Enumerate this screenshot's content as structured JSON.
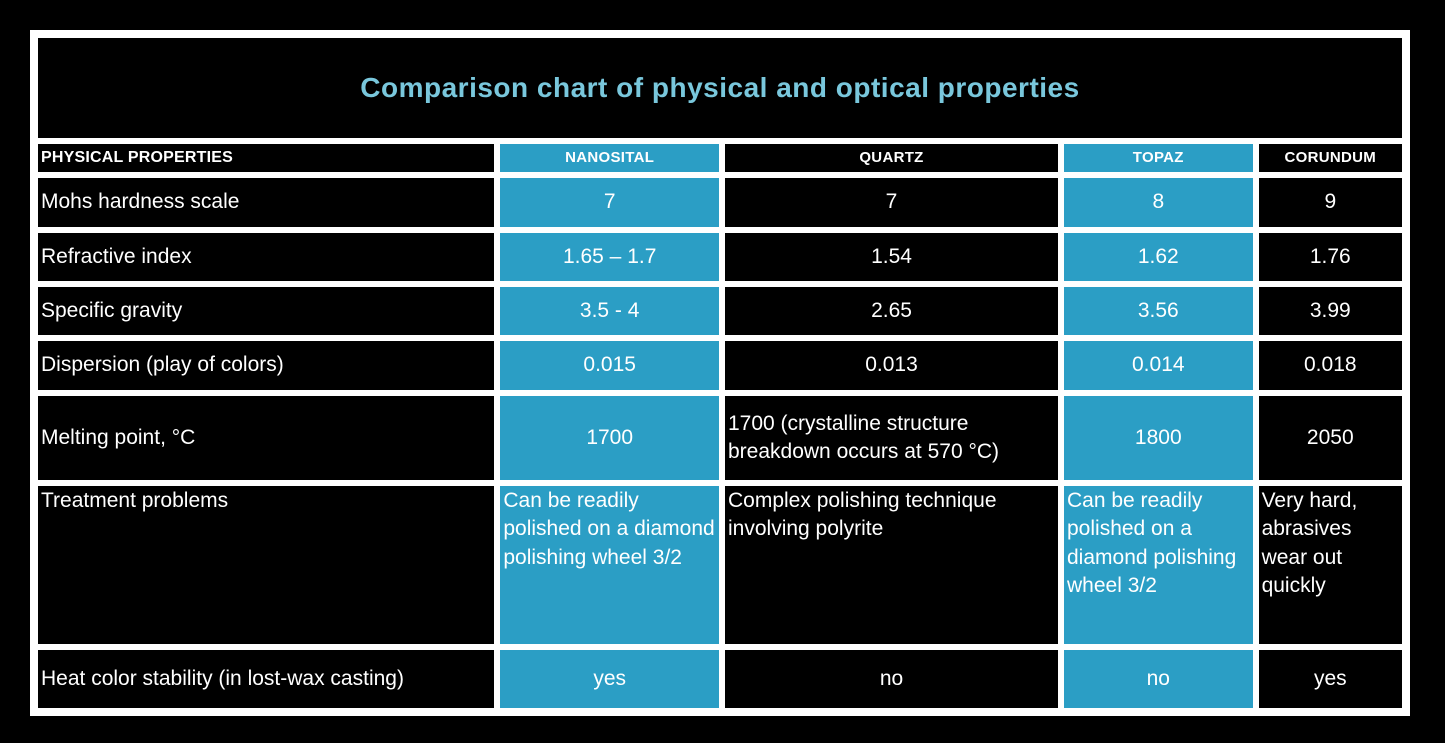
{
  "title": "Comparison chart of physical and optical properties",
  "colors": {
    "background": "#000000",
    "frame": "#ffffff",
    "cell_black": "#000000",
    "cell_highlight_teal": "#2b9ec5",
    "title_text": "#79c7dc",
    "cell_text": "#ffffff"
  },
  "table": {
    "header": [
      "PHYSICAL PROPERTIES",
      "NANOSITAL",
      "QUARTZ",
      "TOPAZ",
      "CORUNDUM"
    ],
    "highlighted_columns": [
      "NANOSITAL",
      "TOPAZ"
    ],
    "rows": [
      {
        "property": "Mohs hardness scale",
        "nanosital": "7",
        "quartz": "7",
        "topaz": "8",
        "corundum": "9"
      },
      {
        "property": "Refractive index",
        "nanosital": "1.65 – 1.7",
        "quartz": "1.54",
        "topaz": "1.62",
        "corundum": "1.76"
      },
      {
        "property": "Specific gravity",
        "nanosital": "3.5 - 4",
        "quartz": "2.65",
        "topaz": "3.56",
        "corundum": "3.99"
      },
      {
        "property": "Dispersion (play of colors)",
        "nanosital": "0.015",
        "quartz": "0.013",
        "topaz": "0.014",
        "corundum": "0.018"
      },
      {
        "property": "Melting point, °C",
        "nanosital": "1700",
        "quartz": "1700 (crystalline structure breakdown occurs at 570 °C)",
        "topaz": "1800",
        "corundum": "2050"
      },
      {
        "property": "Treatment problems",
        "nanosital": "Can be readily polished on a diamond polishing wheel 3/2",
        "quartz": "Complex polishing technique involving polyrite",
        "topaz": "Can be readily polished on a diamond polishing wheel 3/2",
        "corundum": "Very hard, abrasives wear out quickly"
      },
      {
        "property": "Heat color stability (in lost-wax casting)",
        "nanosital": "yes",
        "quartz": "no",
        "topaz": "no",
        "corundum": "yes"
      }
    ]
  },
  "chart_data": {
    "type": "table",
    "title": "Comparison chart of physical and optical properties",
    "columns": [
      "PHYSICAL PROPERTIES",
      "NANOSITAL",
      "QUARTZ",
      "TOPAZ",
      "CORUNDUM"
    ],
    "rows": [
      [
        "Mohs hardness scale",
        "7",
        "7",
        "8",
        "9"
      ],
      [
        "Refractive index",
        "1.65 – 1.7",
        "1.54",
        "1.62",
        "1.76"
      ],
      [
        "Specific gravity",
        "3.5 - 4",
        "2.65",
        "3.56",
        "3.99"
      ],
      [
        "Dispersion (play of colors)",
        "0.015",
        "0.013",
        "0.014",
        "0.018"
      ],
      [
        "Melting point, °C",
        "1700",
        "1700 (crystalline structure breakdown occurs at 570 °C)",
        "1800",
        "2050"
      ],
      [
        "Treatment problems",
        "Can be readily polished on a diamond polishing wheel 3/2",
        "Complex polishing technique involving polyrite",
        "Can be readily polished on a diamond polishing wheel 3/2",
        "Very hard, abrasives wear out quickly"
      ],
      [
        "Heat color stability (in lost-wax casting)",
        "yes",
        "no",
        "no",
        "yes"
      ]
    ],
    "layout_hints": {
      "highlighted_columns": [
        "NANOSITAL",
        "TOPAZ"
      ],
      "highlight_color": "#2b9ec5",
      "cell_background": "#000000",
      "text_color": "#ffffff"
    }
  }
}
